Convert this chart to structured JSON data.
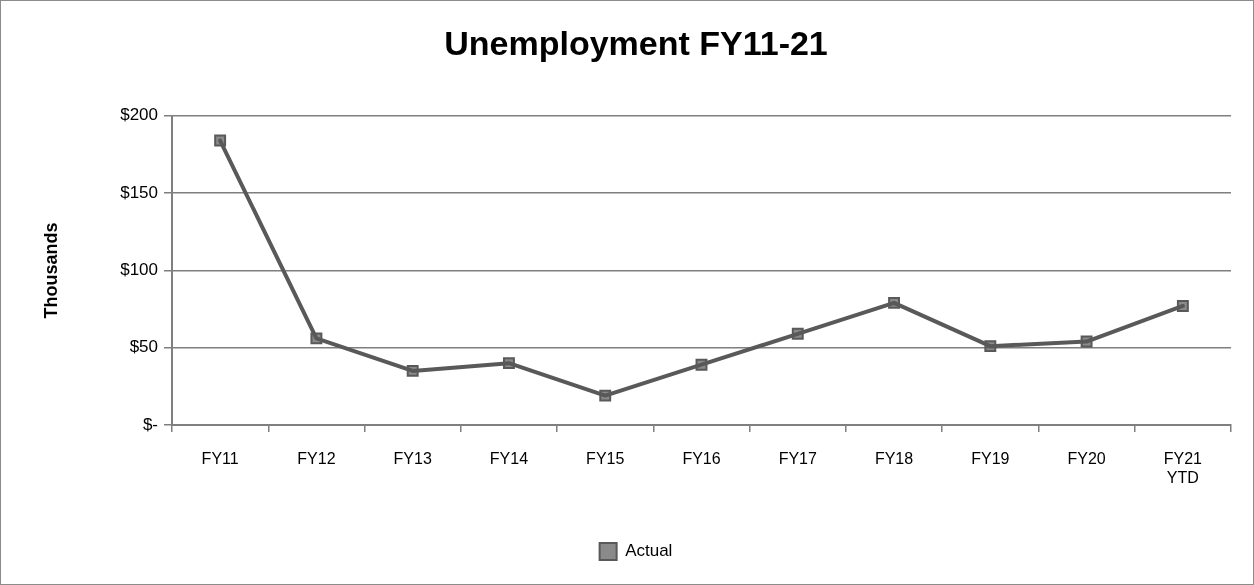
{
  "chart_data": {
    "type": "line",
    "title": "Unemployment FY11-21",
    "ylabel": "Thousands",
    "categories": [
      "FY11",
      "FY12",
      "FY13",
      "FY14",
      "FY15",
      "FY16",
      "FY17",
      "FY18",
      "FY19",
      "FY20",
      "FY21\nYTD"
    ],
    "series": [
      {
        "name": "Actual",
        "color": "#595959",
        "values": [
          184,
          56,
          35,
          40,
          19,
          39,
          59,
          79,
          51,
          54,
          77
        ]
      }
    ],
    "ylim": [
      0,
      200
    ],
    "yticks": [
      {
        "value": 0,
        "label": "$-"
      },
      {
        "value": 50,
        "label": "$50"
      },
      {
        "value": 100,
        "label": "$100"
      },
      {
        "value": 150,
        "label": "$150"
      },
      {
        "value": 200,
        "label": "$200"
      }
    ],
    "grid": "y",
    "legend": "bottom",
    "marker": "square",
    "line_style": "solid"
  }
}
